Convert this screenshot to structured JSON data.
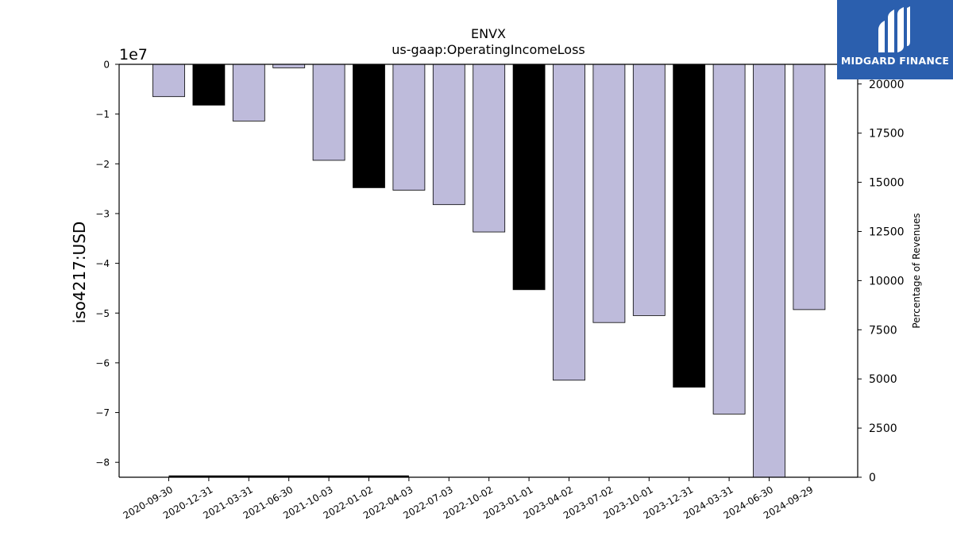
{
  "chart_data": {
    "type": "bar",
    "title": "ENVX",
    "subtitle": "us-gaap:OperatingIncomeLoss",
    "ylabel": "iso4217:USD",
    "y_offset_text": "1e7",
    "y2label": "Percentage of Revenues",
    "ylim": [
      -8.3,
      0
    ],
    "y2lim": [
      0,
      21000
    ],
    "y_ticks": [
      "0",
      "−1",
      "−2",
      "−3",
      "−4",
      "−5",
      "−6",
      "−7",
      "−8"
    ],
    "y_tick_values": [
      0,
      -1,
      -2,
      -3,
      -4,
      -5,
      -6,
      -7,
      -8
    ],
    "y2_ticks": [
      "0",
      "2500",
      "5000",
      "7500",
      "10000",
      "12500",
      "15000",
      "17500",
      "20000"
    ],
    "y2_tick_values": [
      0,
      2500,
      5000,
      7500,
      10000,
      12500,
      15000,
      17500,
      20000
    ],
    "categories": [
      "2020-09-30",
      "2020-12-31",
      "2021-03-31",
      "2021-06-30",
      "2021-10-03",
      "2022-01-02",
      "2022-04-03",
      "2022-07-03",
      "2022-10-02",
      "2023-01-01",
      "2023-04-02",
      "2023-07-02",
      "2023-10-01",
      "2023-12-31",
      "2024-03-31",
      "2024-06-30",
      "2024-09-29"
    ],
    "values": [
      -0.65,
      -0.82,
      -1.14,
      -0.07,
      -1.93,
      -2.48,
      -2.53,
      -2.82,
      -3.37,
      -4.53,
      -6.35,
      -5.19,
      -5.05,
      -6.49,
      -7.03,
      -8.3,
      -4.93
    ],
    "bar_highlight": [
      false,
      true,
      false,
      false,
      false,
      true,
      false,
      false,
      false,
      true,
      false,
      false,
      false,
      true,
      false,
      false,
      false
    ],
    "secondary_series": {
      "name": "",
      "x_range": [
        "2020-09-30",
        "2022-04-03"
      ],
      "values": [
        0,
        0
      ]
    },
    "colors": {
      "bar": "#bebbdb",
      "bar_highlight": "#000000",
      "edge": "#000000",
      "line": "#000000"
    },
    "grid": false,
    "legend": "none"
  },
  "logo": {
    "text": "MIDGARD FINANCE",
    "bg_color": "#2b5fae"
  }
}
